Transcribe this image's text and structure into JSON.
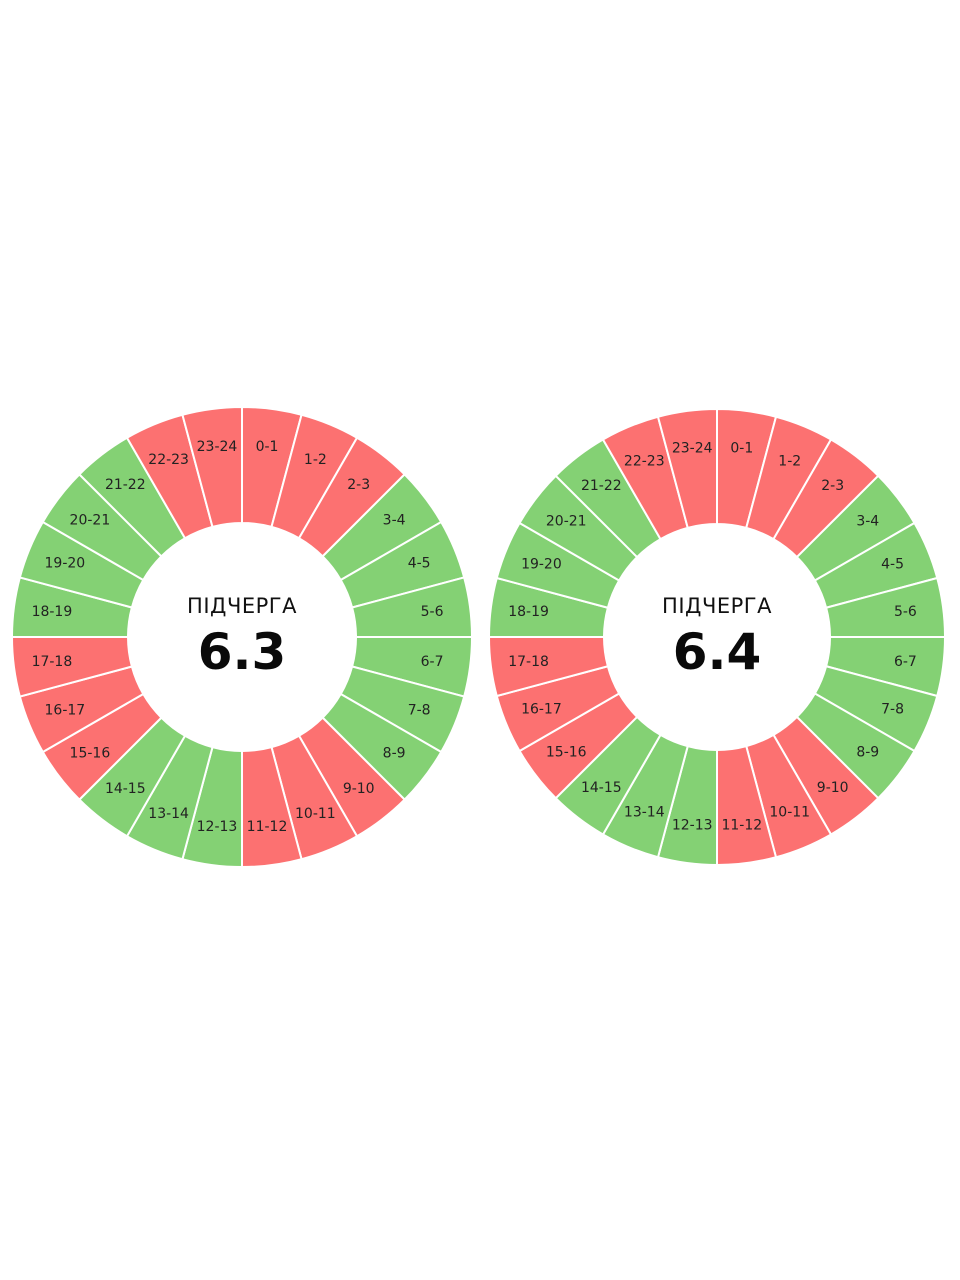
{
  "colors": {
    "on": "#84d174",
    "off": "#fc7171",
    "separator": "#ffffff"
  },
  "chart_data": [
    {
      "type": "pie",
      "title": "ПІДЧЕРГА",
      "value": "6.3",
      "categories": [
        "0-1",
        "1-2",
        "2-3",
        "3-4",
        "4-5",
        "5-6",
        "6-7",
        "7-8",
        "8-9",
        "9-10",
        "10-11",
        "11-12",
        "12-13",
        "13-14",
        "14-15",
        "15-16",
        "16-17",
        "17-18",
        "18-19",
        "19-20",
        "20-21",
        "21-22",
        "22-23",
        "23-24"
      ],
      "status": [
        "off",
        "off",
        "off",
        "on",
        "on",
        "on",
        "on",
        "on",
        "on",
        "off",
        "off",
        "off",
        "on",
        "on",
        "on",
        "off",
        "off",
        "off",
        "on",
        "on",
        "on",
        "on",
        "off",
        "off"
      ]
    },
    {
      "type": "pie",
      "title": "ПІДЧЕРГА",
      "value": "6.4",
      "categories": [
        "0-1",
        "1-2",
        "2-3",
        "3-4",
        "4-5",
        "5-6",
        "6-7",
        "7-8",
        "8-9",
        "9-10",
        "10-11",
        "11-12",
        "12-13",
        "13-14",
        "14-15",
        "15-16",
        "16-17",
        "17-18",
        "18-19",
        "19-20",
        "20-21",
        "21-22",
        "22-23",
        "23-24"
      ],
      "status": [
        "off",
        "off",
        "off",
        "on",
        "on",
        "on",
        "on",
        "on",
        "on",
        "off",
        "off",
        "off",
        "on",
        "on",
        "on",
        "off",
        "off",
        "off",
        "on",
        "on",
        "on",
        "on",
        "off",
        "off"
      ]
    }
  ]
}
